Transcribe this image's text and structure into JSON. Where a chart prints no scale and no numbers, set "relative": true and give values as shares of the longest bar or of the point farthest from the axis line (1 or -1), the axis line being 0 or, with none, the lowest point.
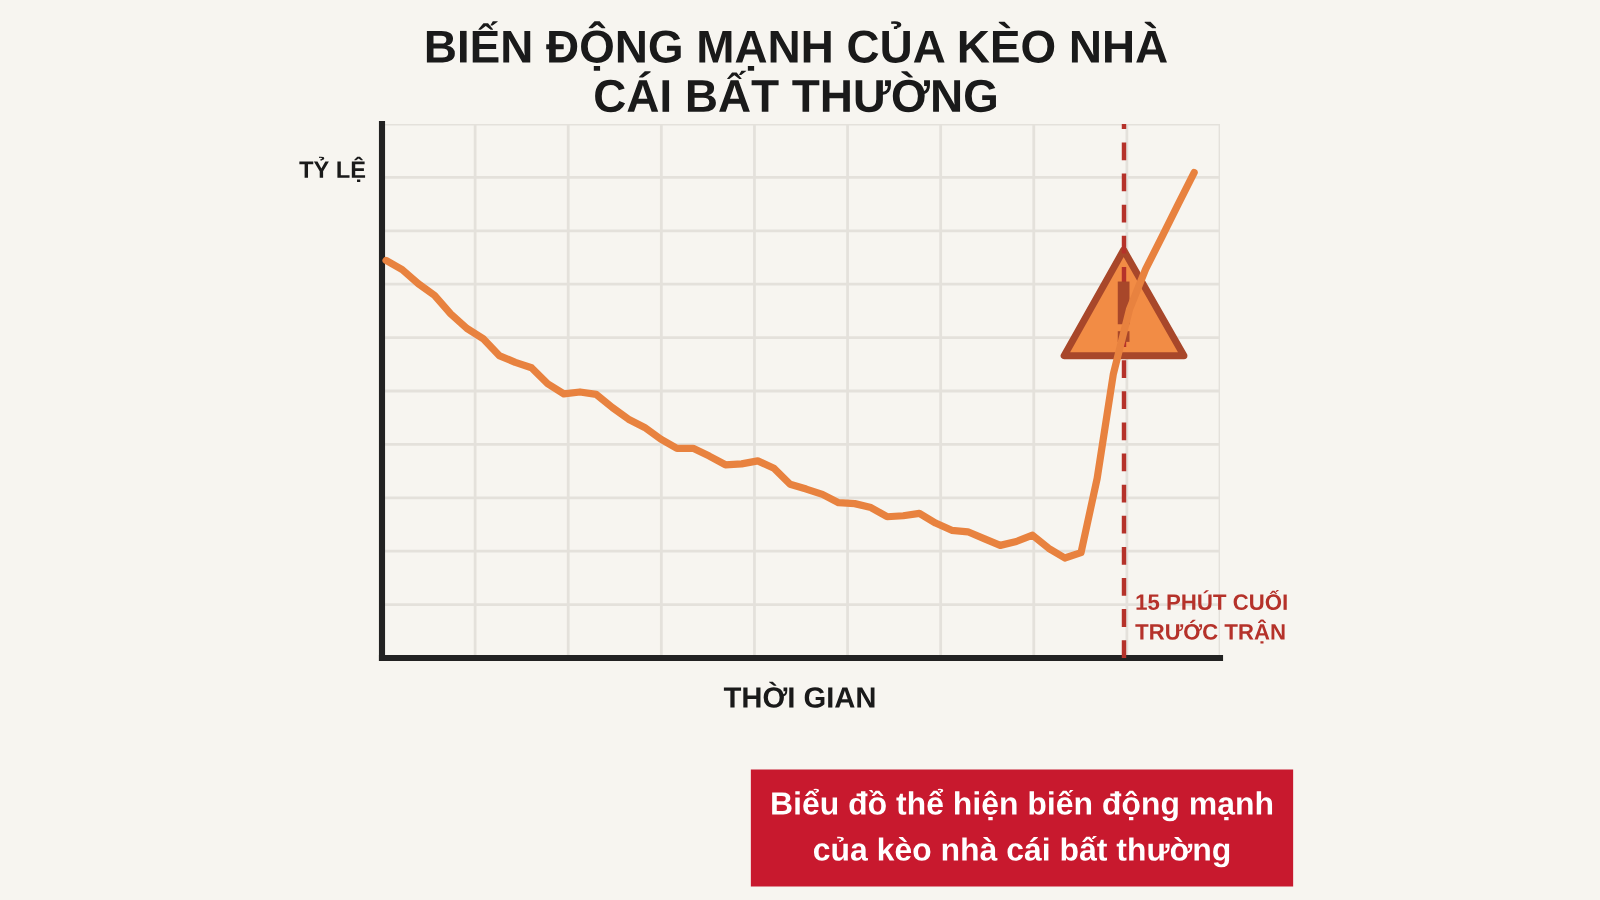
{
  "chart_data": {
    "type": "line",
    "title": "BIẾN ĐỘNG MẠNH CỦA KÈO NHÀ\nCÁI BẤT THƯỜNG",
    "xlabel": "THỜI GIAN",
    "ylabel": "TỶ LỆ",
    "annotations": [
      "15 PHÚT CUỐI\nTRƯỚC TRẬN",
      "Biểu đồ thể hiện biến động mạnh\ncủa kèo nhà cái bất thường"
    ],
    "relative": true,
    "grid": true,
    "line_style": "solid",
    "categories": [
      null,
      null,
      null,
      null,
      null,
      null,
      null,
      null,
      null,
      null,
      null,
      null,
      null,
      null,
      null,
      null,
      null,
      null,
      null,
      null,
      null,
      null,
      null,
      null,
      null,
      null,
      null,
      null,
      null,
      null,
      null,
      null,
      null,
      null,
      null,
      null,
      null,
      null,
      null,
      null,
      null,
      null,
      null,
      null,
      null,
      null,
      null,
      null,
      null,
      null,
      null
    ],
    "series": [
      {
        "color": "#e8823f",
        "values": [
          0.819,
          0.8,
          0.771,
          0.747,
          0.709,
          0.679,
          0.658,
          0.623,
          0.609,
          0.598,
          0.565,
          0.544,
          0.548,
          0.543,
          0.516,
          0.492,
          0.475,
          0.451,
          0.432,
          0.432,
          0.416,
          0.398,
          0.4,
          0.406,
          0.391,
          0.358,
          0.348,
          0.337,
          0.32,
          0.318,
          0.31,
          0.291,
          0.293,
          0.298,
          0.278,
          0.263,
          0.26,
          0.246,
          0.232,
          0.24,
          0.253,
          0.226,
          0.206,
          0.217,
          0.37,
          0.585,
          0.718,
          0.801,
          0.867,
          0.934,
          1
        ]
      }
    ]
  }
}
